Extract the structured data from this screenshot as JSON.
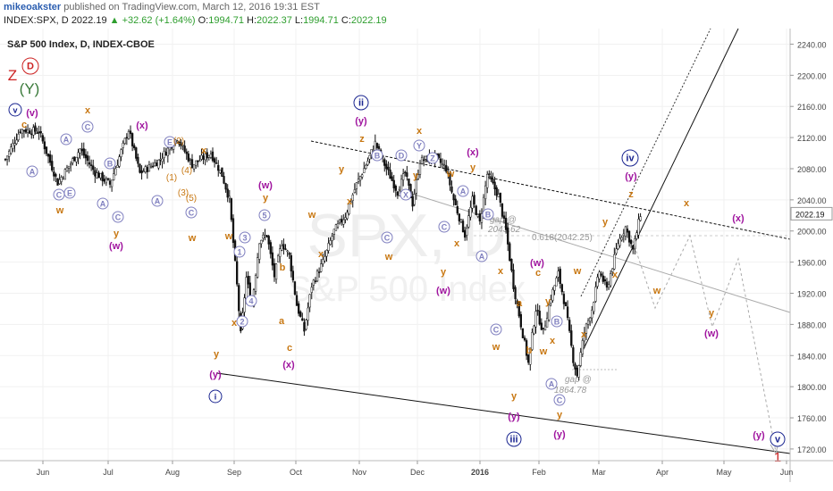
{
  "header": {
    "author": "mikeoakster",
    "published": "published on TradingView.com, March 12, 2016 19:31 EST",
    "symbol": "INDEX:SPX, D",
    "last": "2022.19",
    "change": "▲ +32.62 (+1.64%)",
    "o_label": "O:",
    "o": "1994.71",
    "h_label": "H:",
    "h": "2022.37",
    "l_label": "L:",
    "l": "1994.71",
    "c_label": "C:",
    "c": "2022.19"
  },
  "chart_data": {
    "type": "candlestick",
    "title": "S&P 500 Index, D, INDEX-CBOE",
    "watermark_symbol": "SPX, D",
    "watermark_name": "S&P 500 Index",
    "y_ticks": [
      1720,
      1760,
      1800,
      1840,
      1880,
      1920,
      1960,
      2000,
      2040,
      2080,
      2120,
      2160,
      2200,
      2240
    ],
    "ylim": [
      1705,
      2260
    ],
    "x_ticks": [
      "Jun",
      "Jul",
      "Aug",
      "Sep",
      "Oct",
      "Nov",
      "Dec",
      "2016",
      "Feb",
      "Mar",
      "Apr",
      "May",
      "Jun"
    ],
    "last_price": 2022.19,
    "colors": {
      "up": "#ffffff",
      "down": "#111111",
      "wave_orange": "#c87813",
      "wave_magenta": "#a0159f",
      "wave_blue": "#1a2590",
      "wave_red": "#cc2222",
      "wave_green": "#3a7a3a",
      "circle_grey": "#7f7fbf"
    },
    "series_key": [
      {
        "t": 0,
        "v": 2092
      },
      {
        "t": 8,
        "v": 2130
      },
      {
        "t": 18,
        "v": 2128
      },
      {
        "t": 28,
        "v": 2062
      },
      {
        "t": 40,
        "v": 2105
      },
      {
        "t": 48,
        "v": 2075
      },
      {
        "t": 56,
        "v": 2060
      },
      {
        "t": 66,
        "v": 2130
      },
      {
        "t": 72,
        "v": 2074
      },
      {
        "t": 82,
        "v": 2090
      },
      {
        "t": 92,
        "v": 2120
      },
      {
        "t": 100,
        "v": 2085
      },
      {
        "t": 110,
        "v": 2100
      },
      {
        "t": 116,
        "v": 2072
      },
      {
        "t": 120,
        "v": 2040
      },
      {
        "t": 124,
        "v": 1930
      },
      {
        "t": 126,
        "v": 1867
      },
      {
        "t": 129,
        "v": 1940
      },
      {
        "t": 132,
        "v": 1905
      },
      {
        "t": 136,
        "v": 1988
      },
      {
        "t": 140,
        "v": 1995
      },
      {
        "t": 144,
        "v": 1942
      },
      {
        "t": 148,
        "v": 1985
      },
      {
        "t": 152,
        "v": 1968
      },
      {
        "t": 156,
        "v": 1905
      },
      {
        "t": 160,
        "v": 1872
      },
      {
        "t": 164,
        "v": 1930
      },
      {
        "t": 170,
        "v": 1960
      },
      {
        "t": 176,
        "v": 2000
      },
      {
        "t": 182,
        "v": 2020
      },
      {
        "t": 188,
        "v": 2060
      },
      {
        "t": 194,
        "v": 2090
      },
      {
        "t": 198,
        "v": 2113
      },
      {
        "t": 204,
        "v": 2080
      },
      {
        "t": 210,
        "v": 2050
      },
      {
        "t": 214,
        "v": 2075
      },
      {
        "t": 218,
        "v": 2035
      },
      {
        "t": 222,
        "v": 2090
      },
      {
        "t": 230,
        "v": 2095
      },
      {
        "t": 236,
        "v": 2080
      },
      {
        "t": 240,
        "v": 2040
      },
      {
        "t": 246,
        "v": 1995
      },
      {
        "t": 250,
        "v": 2040
      },
      {
        "t": 254,
        "v": 2010
      },
      {
        "t": 258,
        "v": 2073
      },
      {
        "t": 264,
        "v": 2045
      },
      {
        "t": 268,
        "v": 2000
      },
      {
        "t": 272,
        "v": 1930
      },
      {
        "t": 276,
        "v": 1880
      },
      {
        "t": 280,
        "v": 1830
      },
      {
        "t": 284,
        "v": 1900
      },
      {
        "t": 288,
        "v": 1870
      },
      {
        "t": 292,
        "v": 1915
      },
      {
        "t": 296,
        "v": 1945
      },
      {
        "t": 300,
        "v": 1900
      },
      {
        "t": 304,
        "v": 1835
      },
      {
        "t": 306,
        "v": 1815
      },
      {
        "t": 310,
        "v": 1870
      },
      {
        "t": 314,
        "v": 1900
      },
      {
        "t": 318,
        "v": 1948
      },
      {
        "t": 322,
        "v": 1925
      },
      {
        "t": 328,
        "v": 1985
      },
      {
        "t": 332,
        "v": 2005
      },
      {
        "t": 336,
        "v": 1975
      },
      {
        "t": 340,
        "v": 2022
      }
    ],
    "annotations": [
      {
        "text": "0.618(2042.25)",
        "kind": "label"
      },
      {
        "text": "gap @",
        "kind": "label"
      },
      {
        "text": "2043.62",
        "kind": "label"
      },
      {
        "text": "gap @",
        "kind": "label"
      },
      {
        "text": "1864.78",
        "kind": "label"
      }
    ],
    "wave_labels": [
      "Z",
      "D",
      "(Y)",
      "v",
      "(v)",
      "c",
      "x",
      "(x)",
      "y",
      "(w)",
      "w",
      "A",
      "B",
      "C",
      "E",
      "(1)",
      "(2)",
      "(3)",
      "(4)",
      "(5)",
      "x",
      "y",
      "(y)",
      "i",
      "ii",
      "iii",
      "iv",
      "a",
      "b",
      "(w)",
      "(x)",
      "(y)",
      "1",
      "2",
      "3",
      "4",
      "5",
      "z",
      "w",
      "x",
      "y"
    ]
  }
}
